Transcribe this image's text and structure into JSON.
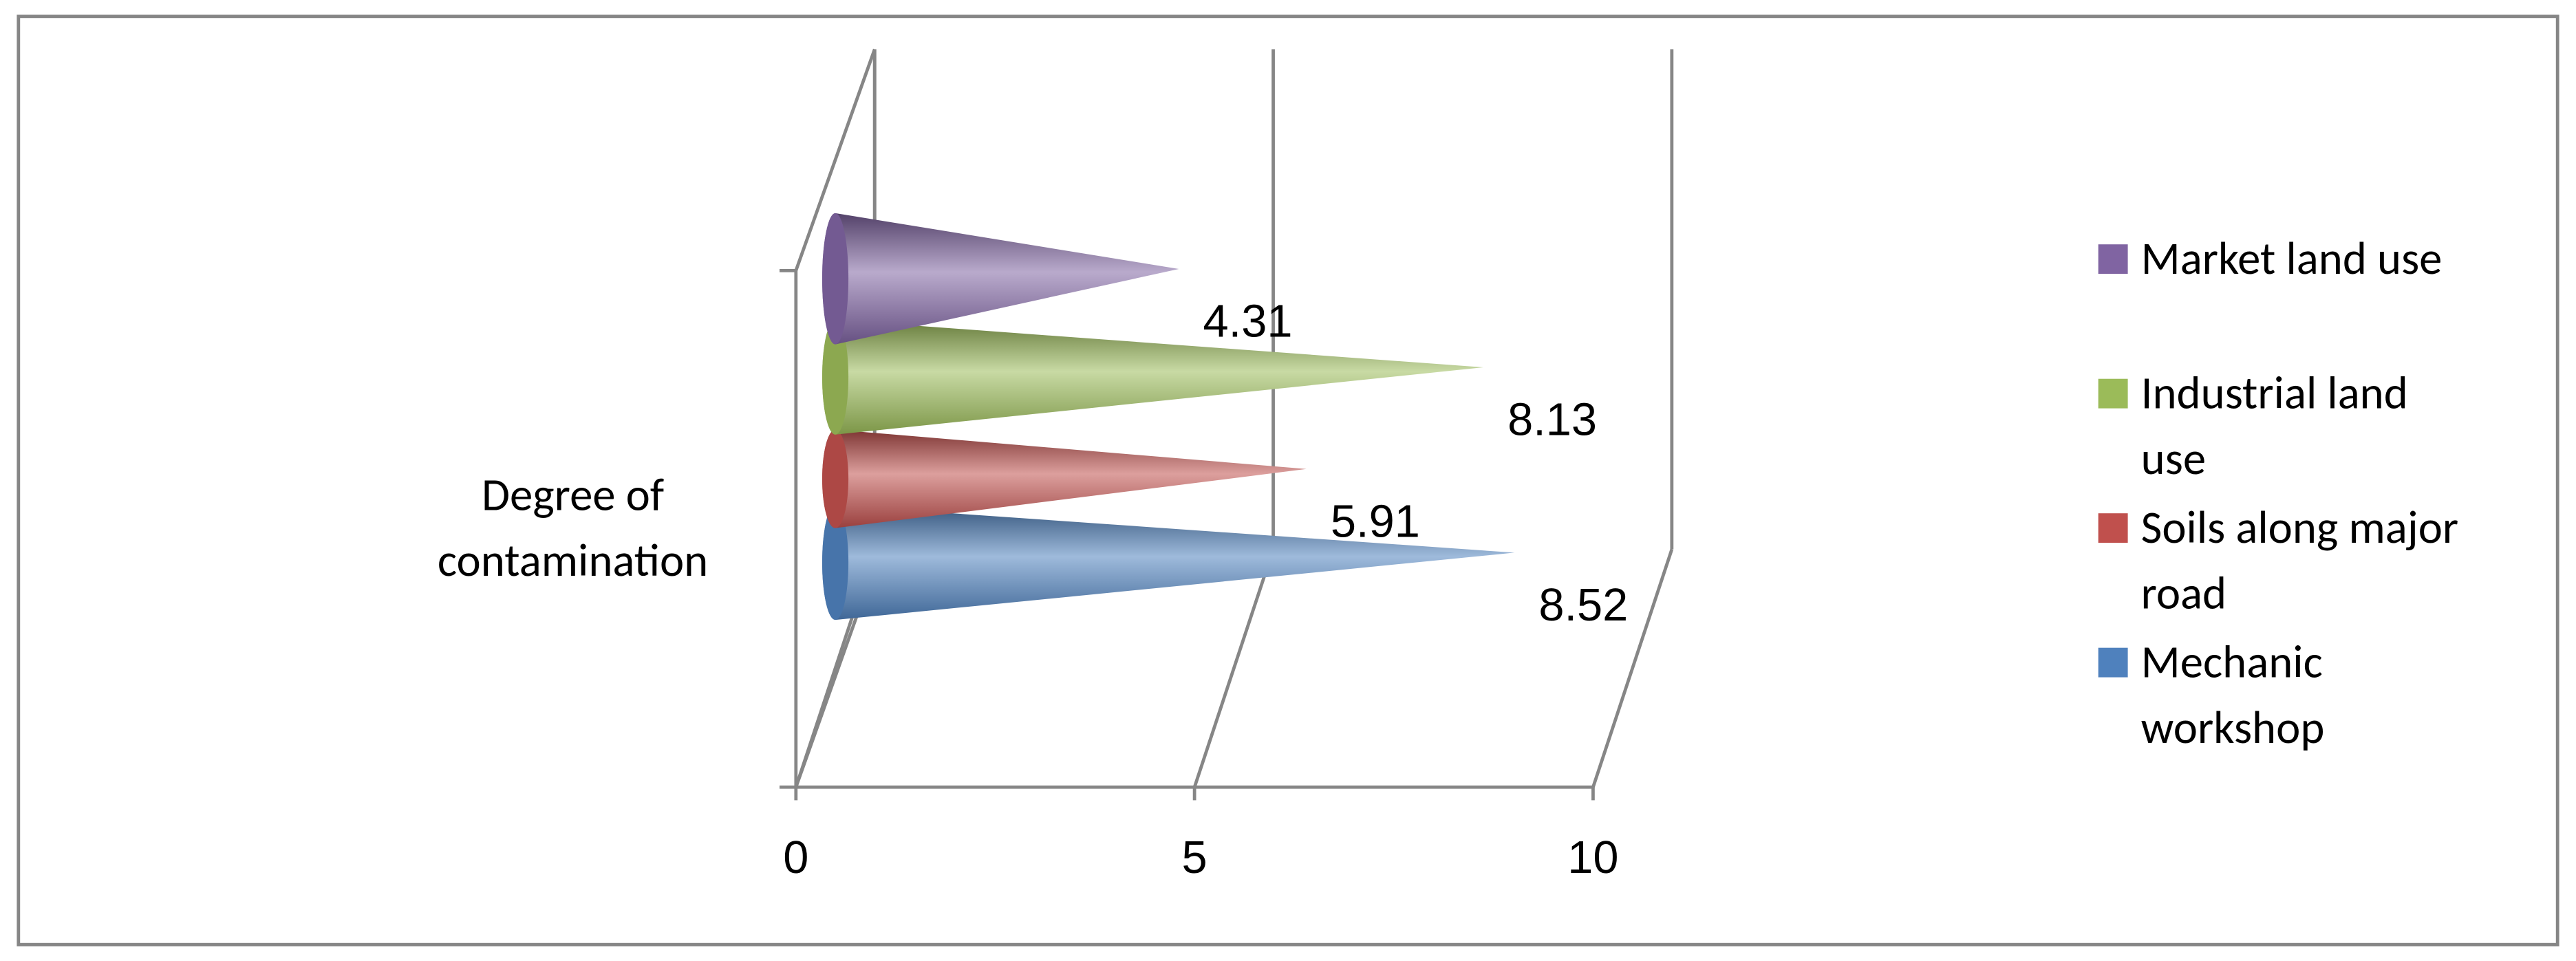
{
  "chart_data": {
    "type": "cone",
    "categories": [
      "Degree of contamination"
    ],
    "series": [
      {
        "name": "Mechanic workshop",
        "color": "#4f81bd",
        "values": [
          8.52
        ]
      },
      {
        "name": "Soils along major road",
        "color": "#c0504d",
        "values": [
          5.91
        ]
      },
      {
        "name": "Industrial land use",
        "color": "#9bbb59",
        "values": [
          8.13
        ]
      },
      {
        "name": "Market land use",
        "color": "#8064a2",
        "values": [
          4.31
        ]
      }
    ],
    "xlim": [
      0,
      10
    ],
    "xticks": [
      0,
      5,
      10
    ],
    "grid": true,
    "legend": "right"
  }
}
